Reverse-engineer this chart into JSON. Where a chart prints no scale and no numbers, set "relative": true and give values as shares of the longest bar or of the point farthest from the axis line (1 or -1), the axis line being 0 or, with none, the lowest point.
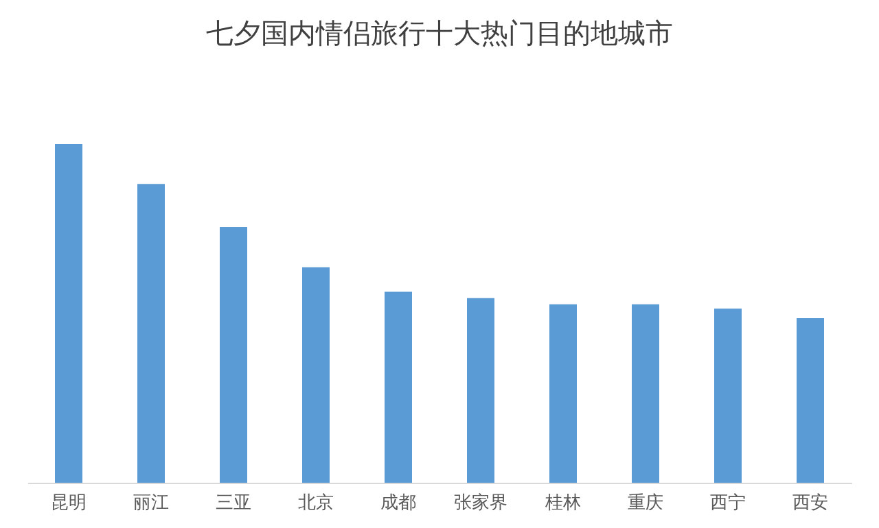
{
  "chart_data": {
    "type": "bar",
    "title": "七夕国内情侣旅行十大热门目的地城市",
    "relative": true,
    "categories": [
      "昆明",
      "丽江",
      "三亚",
      "北京",
      "成都",
      "张家界",
      "桂林",
      "重庆",
      "西宁",
      "西安"
    ],
    "values": [
      1,
      0.882,
      0.755,
      0.636,
      0.564,
      0.545,
      0.527,
      0.527,
      0.514,
      0.486
    ],
    "color": "#5b9bd5",
    "grid": false
  }
}
